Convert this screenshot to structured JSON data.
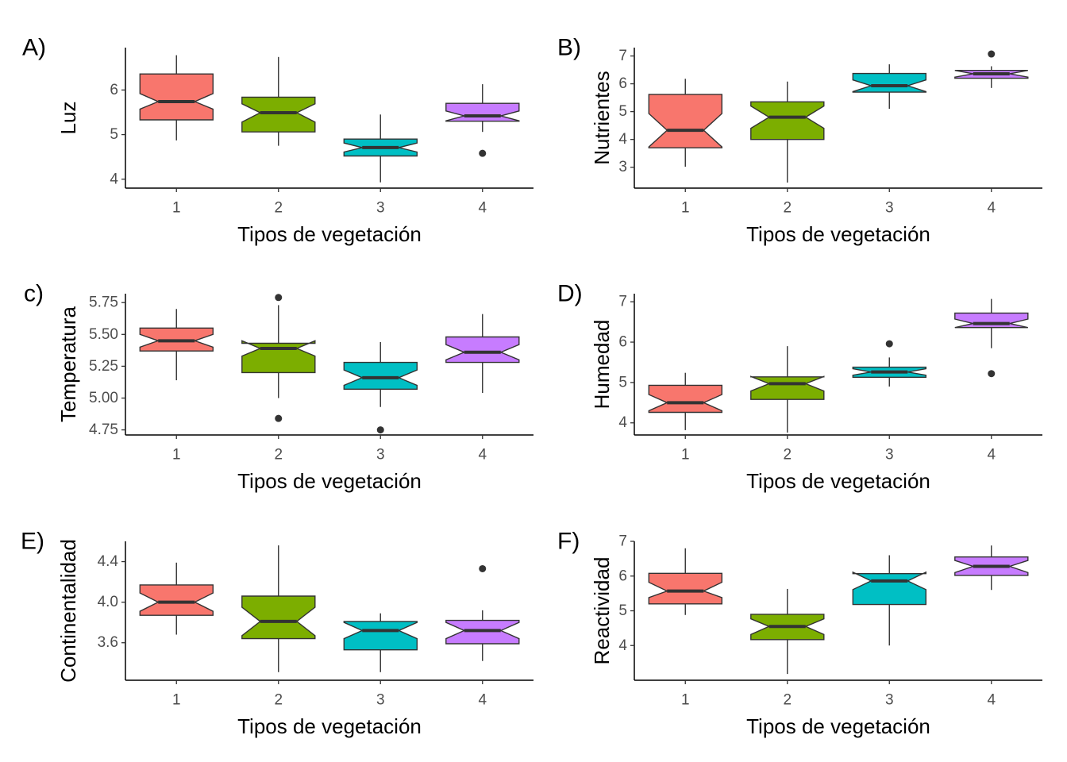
{
  "chart_data": [
    {
      "type": "boxplot",
      "tag": "A)",
      "xlabel": "Tipos de vegetación",
      "ylabel": "Luz",
      "categories": [
        "1",
        "2",
        "3",
        "4"
      ],
      "ylim": [
        3.8,
        6.95
      ],
      "yticks": [
        4,
        5,
        6
      ],
      "ytick_labels": [
        "4",
        "5",
        "6"
      ],
      "boxes": [
        {
          "whisker_low": 4.87,
          "q1": 5.33,
          "median": 5.74,
          "q3": 6.36,
          "whisker_high": 6.78,
          "notch_low": 5.57,
          "notch_high": 5.92,
          "outliers": []
        },
        {
          "whisker_low": 4.75,
          "q1": 5.06,
          "median": 5.49,
          "q3": 5.84,
          "whisker_high": 6.74,
          "notch_low": 5.28,
          "notch_high": 5.69,
          "outliers": []
        },
        {
          "whisker_low": 3.93,
          "q1": 4.52,
          "median": 4.71,
          "q3": 4.9,
          "whisker_high": 5.45,
          "notch_low": 4.61,
          "notch_high": 4.81,
          "outliers": []
        },
        {
          "whisker_low": 5.06,
          "q1": 5.3,
          "median": 5.42,
          "q3": 5.7,
          "whisker_high": 6.13,
          "notch_low": 5.31,
          "notch_high": 5.53,
          "outliers": [
            4.58
          ]
        }
      ]
    },
    {
      "type": "boxplot",
      "tag": "B)",
      "xlabel": "Tipos de vegetación",
      "ylabel": "Nutrientes",
      "categories": [
        "1",
        "2",
        "3",
        "4"
      ],
      "ylim": [
        2.25,
        7.3
      ],
      "yticks": [
        3,
        4,
        5,
        6,
        7
      ],
      "ytick_labels": [
        "3",
        "4",
        "5",
        "6",
        "7"
      ],
      "boxes": [
        {
          "whisker_low": 3.02,
          "q1": 3.7,
          "median": 4.33,
          "q3": 5.62,
          "whisker_high": 6.18,
          "notch_low": 3.73,
          "notch_high": 4.93,
          "outliers": []
        },
        {
          "whisker_low": 2.45,
          "q1": 4.0,
          "median": 4.8,
          "q3": 5.35,
          "whisker_high": 6.08,
          "notch_low": 4.4,
          "notch_high": 5.2,
          "outliers": []
        },
        {
          "whisker_low": 5.1,
          "q1": 5.7,
          "median": 5.93,
          "q3": 6.37,
          "whisker_high": 6.7,
          "notch_low": 5.72,
          "notch_high": 6.14,
          "outliers": []
        },
        {
          "whisker_low": 5.85,
          "q1": 6.2,
          "median": 6.36,
          "q3": 6.48,
          "whisker_high": 6.63,
          "notch_low": 6.24,
          "notch_high": 6.48,
          "outliers": [
            7.07
          ]
        }
      ]
    },
    {
      "type": "boxplot",
      "tag": "c)",
      "xlabel": "Tipos de vegetación",
      "ylabel": "Temperatura",
      "categories": [
        "1",
        "2",
        "3",
        "4"
      ],
      "ylim": [
        4.71,
        5.82
      ],
      "yticks": [
        4.75,
        5.0,
        5.25,
        5.5,
        5.75
      ],
      "ytick_labels": [
        "4.75",
        "5.00",
        "5.25",
        "5.50",
        "5.75"
      ],
      "boxes": [
        {
          "whisker_low": 5.14,
          "q1": 5.37,
          "median": 5.45,
          "q3": 5.55,
          "whisker_high": 5.7,
          "notch_low": 5.4,
          "notch_high": 5.5,
          "outliers": []
        },
        {
          "whisker_low": 5.0,
          "q1": 5.2,
          "median": 5.39,
          "q3": 5.43,
          "whisker_high": 5.73,
          "notch_low": 5.33,
          "notch_high": 5.45,
          "outliers": [
            5.79,
            4.84
          ]
        },
        {
          "whisker_low": 4.93,
          "q1": 5.07,
          "median": 5.16,
          "q3": 5.28,
          "whisker_high": 5.44,
          "notch_low": 5.1,
          "notch_high": 5.22,
          "outliers": [
            4.75
          ]
        },
        {
          "whisker_low": 5.04,
          "q1": 5.28,
          "median": 5.36,
          "q3": 5.48,
          "whisker_high": 5.66,
          "notch_low": 5.3,
          "notch_high": 5.42,
          "outliers": []
        }
      ]
    },
    {
      "type": "boxplot",
      "tag": "D)",
      "xlabel": "Tipos de vegetación",
      "ylabel": "Humedad",
      "categories": [
        "1",
        "2",
        "3",
        "4"
      ],
      "ylim": [
        3.7,
        7.2
      ],
      "yticks": [
        4,
        5,
        6,
        7
      ],
      "ytick_labels": [
        "4",
        "5",
        "6",
        "7"
      ],
      "boxes": [
        {
          "whisker_low": 3.82,
          "q1": 4.26,
          "median": 4.5,
          "q3": 4.93,
          "whisker_high": 5.24,
          "notch_low": 4.3,
          "notch_high": 4.7,
          "outliers": []
        },
        {
          "whisker_low": 3.76,
          "q1": 4.58,
          "median": 4.97,
          "q3": 5.14,
          "whisker_high": 5.9,
          "notch_low": 4.79,
          "notch_high": 5.15,
          "outliers": []
        },
        {
          "whisker_low": 4.9,
          "q1": 5.13,
          "median": 5.26,
          "q3": 5.38,
          "whisker_high": 5.62,
          "notch_low": 5.18,
          "notch_high": 5.34,
          "outliers": [
            5.96
          ]
        },
        {
          "whisker_low": 5.85,
          "q1": 6.36,
          "median": 6.46,
          "q3": 6.72,
          "whisker_high": 7.07,
          "notch_low": 6.36,
          "notch_high": 6.57,
          "outliers": [
            5.22
          ]
        }
      ]
    },
    {
      "type": "boxplot",
      "tag": "E)",
      "xlabel": "Tipos de vegetación",
      "ylabel": "Continentalidad",
      "categories": [
        "1",
        "2",
        "3",
        "4"
      ],
      "ylim": [
        3.23,
        4.6
      ],
      "yticks": [
        3.6,
        4.0,
        4.4
      ],
      "ytick_labels": [
        "3.6",
        "4.0",
        "4.4"
      ],
      "boxes": [
        {
          "whisker_low": 3.68,
          "q1": 3.87,
          "median": 4.0,
          "q3": 4.17,
          "whisker_high": 4.39,
          "notch_low": 3.91,
          "notch_high": 4.09,
          "outliers": []
        },
        {
          "whisker_low": 3.31,
          "q1": 3.64,
          "median": 3.81,
          "q3": 4.06,
          "whisker_high": 4.56,
          "notch_low": 3.67,
          "notch_high": 3.95,
          "outliers": []
        },
        {
          "whisker_low": 3.31,
          "q1": 3.53,
          "median": 3.72,
          "q3": 3.81,
          "whisker_high": 3.89,
          "notch_low": 3.64,
          "notch_high": 3.8,
          "outliers": []
        },
        {
          "whisker_low": 3.42,
          "q1": 3.59,
          "median": 3.72,
          "q3": 3.82,
          "whisker_high": 3.92,
          "notch_low": 3.64,
          "notch_high": 3.8,
          "outliers": [
            4.33
          ]
        }
      ]
    },
    {
      "type": "boxplot",
      "tag": "F)",
      "xlabel": "Tipos de vegetación",
      "ylabel": "Reactividad",
      "categories": [
        "1",
        "2",
        "3",
        "4"
      ],
      "ylim": [
        3.0,
        7.0
      ],
      "yticks": [
        4,
        5,
        6,
        7
      ],
      "ytick_labels": [
        "4",
        "5",
        "6",
        "7"
      ],
      "boxes": [
        {
          "whisker_low": 4.88,
          "q1": 5.2,
          "median": 5.57,
          "q3": 6.08,
          "whisker_high": 6.8,
          "notch_low": 5.38,
          "notch_high": 5.82,
          "outliers": []
        },
        {
          "whisker_low": 3.18,
          "q1": 4.17,
          "median": 4.55,
          "q3": 4.9,
          "whisker_high": 5.63,
          "notch_low": 4.32,
          "notch_high": 4.77,
          "outliers": []
        },
        {
          "whisker_low": 4.0,
          "q1": 5.18,
          "median": 5.86,
          "q3": 6.07,
          "whisker_high": 6.6,
          "notch_low": 5.61,
          "notch_high": 6.11,
          "outliers": []
        },
        {
          "whisker_low": 5.6,
          "q1": 6.02,
          "median": 6.28,
          "q3": 6.55,
          "whisker_high": 6.88,
          "notch_low": 6.1,
          "notch_high": 6.45,
          "outliers": []
        }
      ]
    }
  ],
  "colors": {
    "group_fills": [
      "#F8766D",
      "#7CAE00",
      "#00BFC4",
      "#C77CFF"
    ],
    "box_stroke": "#333333",
    "axis": "#000000",
    "tick_text": "#4d4d4d"
  }
}
